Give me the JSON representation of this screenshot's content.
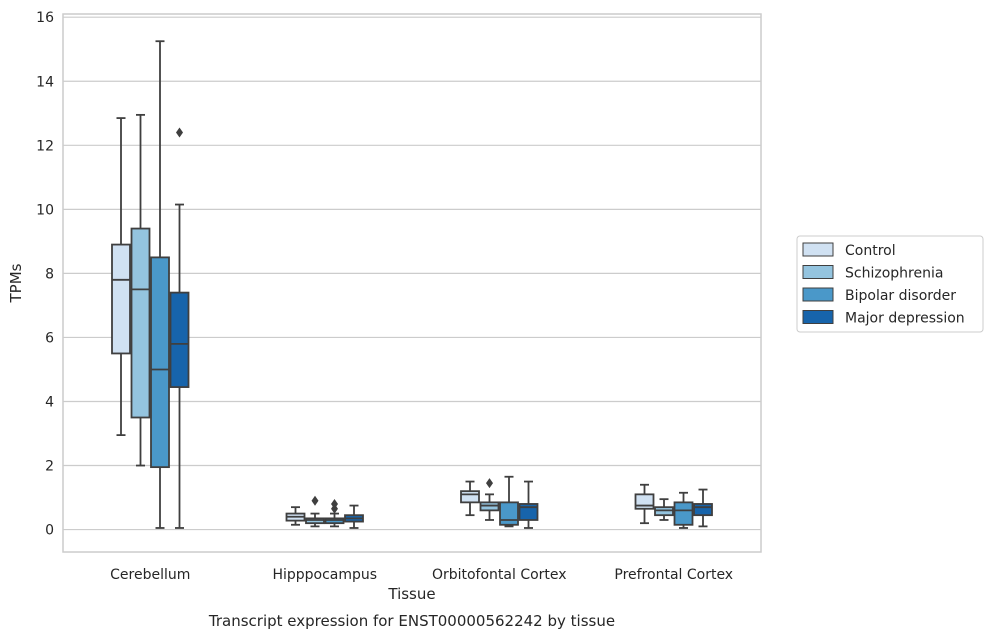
{
  "chart_data": {
    "type": "box",
    "caption": "Transcript expression for ENST00000562242 by tissue",
    "xlabel": "Tissue",
    "ylabel": "TPMs",
    "ylim": [
      -0.7,
      16.1
    ],
    "yticks": [
      0,
      2,
      4,
      6,
      8,
      10,
      12,
      14,
      16
    ],
    "grid": "horizontal",
    "legend_position": "right",
    "categories": [
      "Cerebellum",
      "Hipppocampus",
      "Orbitofontal Cortex",
      "Prefrontal Cortex"
    ],
    "series": [
      {
        "name": "Control",
        "color": "#d0e1f2",
        "boxes": [
          {
            "whislo": 2.95,
            "q1": 5.5,
            "med": 7.8,
            "q3": 8.9,
            "whishi": 12.85,
            "fliers": []
          },
          {
            "whislo": 0.15,
            "q1": 0.28,
            "med": 0.4,
            "q3": 0.5,
            "whishi": 0.7,
            "fliers": []
          },
          {
            "whislo": 0.45,
            "q1": 0.85,
            "med": 1.1,
            "q3": 1.2,
            "whishi": 1.5,
            "fliers": []
          },
          {
            "whislo": 0.2,
            "q1": 0.65,
            "med": 0.75,
            "q3": 1.1,
            "whishi": 1.4,
            "fliers": []
          }
        ]
      },
      {
        "name": "Schizophrenia",
        "color": "#94c4df",
        "boxes": [
          {
            "whislo": 2.0,
            "q1": 3.5,
            "med": 7.5,
            "q3": 9.4,
            "whishi": 12.95,
            "fliers": []
          },
          {
            "whislo": 0.1,
            "q1": 0.2,
            "med": 0.3,
            "q3": 0.35,
            "whishi": 0.5,
            "fliers": [
              0.9
            ]
          },
          {
            "whislo": 0.3,
            "q1": 0.6,
            "med": 0.75,
            "q3": 0.85,
            "whishi": 1.1,
            "fliers": [
              1.45
            ]
          },
          {
            "whislo": 0.3,
            "q1": 0.45,
            "med": 0.6,
            "q3": 0.7,
            "whishi": 0.95,
            "fliers": []
          }
        ]
      },
      {
        "name": "Bipolar disorder",
        "color": "#4a98c9",
        "boxes": [
          {
            "whislo": 0.05,
            "q1": 1.95,
            "med": 5.0,
            "q3": 8.5,
            "whishi": 15.25,
            "fliers": []
          },
          {
            "whislo": 0.1,
            "q1": 0.2,
            "med": 0.3,
            "q3": 0.35,
            "whishi": 0.5,
            "fliers": [
              0.65,
              0.8
            ]
          },
          {
            "whislo": 0.1,
            "q1": 0.15,
            "med": 0.3,
            "q3": 0.85,
            "whishi": 1.65,
            "fliers": []
          },
          {
            "whislo": 0.05,
            "q1": 0.15,
            "med": 0.6,
            "q3": 0.85,
            "whishi": 1.15,
            "fliers": []
          }
        ]
      },
      {
        "name": "Major depression",
        "color": "#1764ab",
        "boxes": [
          {
            "whislo": 0.05,
            "q1": 4.45,
            "med": 5.8,
            "q3": 7.4,
            "whishi": 10.15,
            "fliers": [
              12.4
            ]
          },
          {
            "whislo": 0.05,
            "q1": 0.25,
            "med": 0.35,
            "q3": 0.45,
            "whishi": 0.75,
            "fliers": []
          },
          {
            "whislo": 0.05,
            "q1": 0.3,
            "med": 0.7,
            "q3": 0.8,
            "whishi": 1.5,
            "fliers": []
          },
          {
            "whislo": 0.1,
            "q1": 0.45,
            "med": 0.7,
            "q3": 0.8,
            "whishi": 1.25,
            "fliers": []
          }
        ]
      }
    ]
  }
}
